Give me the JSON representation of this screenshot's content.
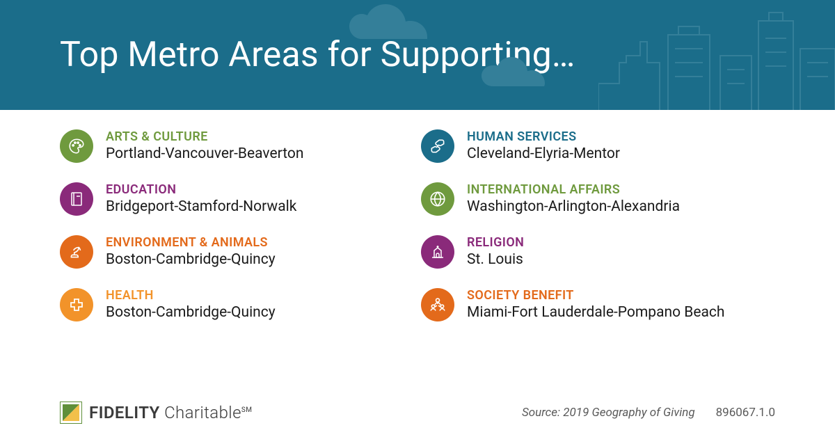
{
  "header": {
    "title": "Top Metro Areas for Supporting…",
    "bg_color": "#1b6d8a",
    "title_color": "#ffffff",
    "title_fontsize": 50
  },
  "categories": [
    {
      "name_key": "arts",
      "label": "ARTS & CULTURE",
      "metro": "Portland-Vancouver-Beaverton",
      "color": "#6f9a3e",
      "label_color": "#6f9a3e",
      "icon": "palette"
    },
    {
      "name_key": "human",
      "label": "HUMAN SERVICES",
      "metro": "Cleveland-Elyria-Mentor",
      "color": "#1b6d8a",
      "label_color": "#1b6d8a",
      "icon": "hands"
    },
    {
      "name_key": "edu",
      "label": "EDUCATION",
      "metro": "Bridgeport-Stamford-Norwalk",
      "color": "#8a2a7a",
      "label_color": "#8a2a7a",
      "icon": "book"
    },
    {
      "name_key": "intl",
      "label": "INTERNATIONAL AFFAIRS",
      "metro": "Washington-Arlington-Alexandria",
      "color": "#6f9a3e",
      "label_color": "#6f9a3e",
      "icon": "globe"
    },
    {
      "name_key": "env",
      "label": "ENVIRONMENT & ANIMALS",
      "metro": "Boston-Cambridge-Quincy",
      "color": "#e36a1b",
      "label_color": "#e36a1b",
      "icon": "leafhand"
    },
    {
      "name_key": "relig",
      "label": "RELIGION",
      "metro": "St. Louis",
      "color": "#8a2a7a",
      "label_color": "#8a2a7a",
      "icon": "church"
    },
    {
      "name_key": "health",
      "label": "HEALTH",
      "metro": "Boston-Cambridge-Quincy",
      "color": "#f2932a",
      "label_color": "#f2932a",
      "icon": "cross"
    },
    {
      "name_key": "society",
      "label": "SOCIETY BENEFIT",
      "metro": "Miami-Fort Lauderdale-Pompano Beach",
      "color": "#e36a1b",
      "label_color": "#e36a1b",
      "icon": "people"
    }
  ],
  "footer": {
    "logo_brand": "FIDELITY",
    "logo_sub": "Charitable",
    "logo_mark": "SM",
    "logo_mark_color": "#5f8f3a",
    "source_label": "Source: 2019 Geography of Giving",
    "doc_id": "896067.1.0"
  },
  "style": {
    "category_fontsize": 18,
    "metro_fontsize": 21,
    "icon_diameter": 48,
    "grid_columns": 2
  }
}
